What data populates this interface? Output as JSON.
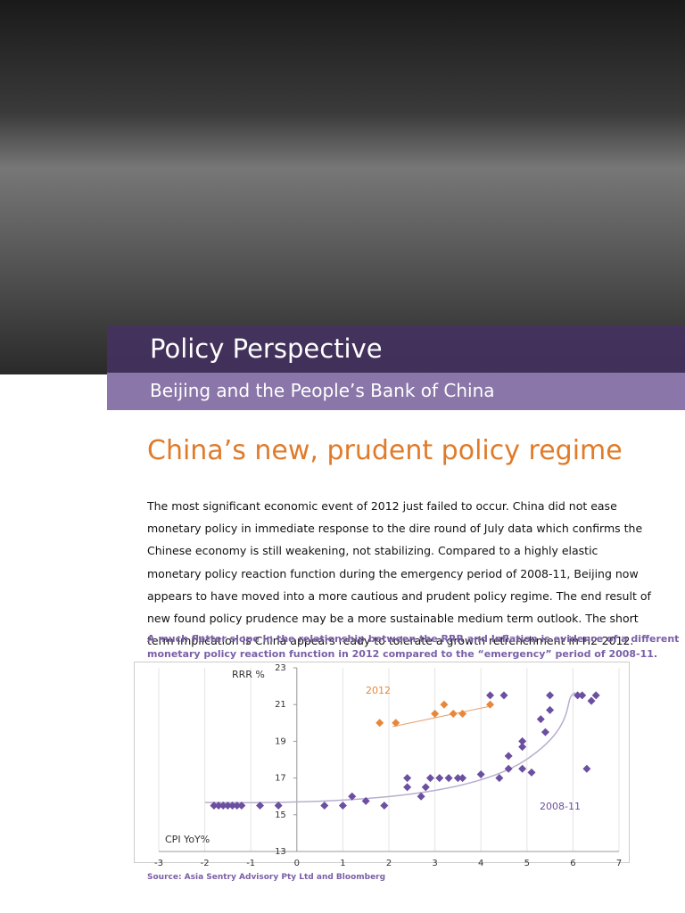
{
  "header": {
    "title": "Policy Perspective",
    "subtitle": "Beijing and the People’s Bank of China"
  },
  "headline": "China’s new, prudent policy regime",
  "body_lines": [
    "The most significant economic event of 2012 just failed to occur.  China did not ease",
    "monetary policy in immediate response to the dire round of July data which confirms the",
    "Chinese economy is still weakening, not stabilizing.  Compared to a highly elastic",
    "monetary policy reaction function during the emergency period of 2008-11, Beijing now",
    "appears to have moved into a more cautious and prudent policy regime.  The end result of",
    "new found policy prudence may be a more sustainable medium term outlook.  The short",
    "term implication is China appears ready to tolerate a growth retrenchment in H2-2012."
  ],
  "caption_lines": [
    "A much flatter slope in the relationship between the RRR and Inflation is evidence of a different",
    "monetary policy reaction function in 2012 compared to the “emergency” period of 2008-11."
  ],
  "chart_data": {
    "type": "scatter",
    "x_label": "CPI YoY%",
    "y_label": "RRR %",
    "xlim": [
      -3,
      7
    ],
    "xticks": [
      -3,
      -2,
      -1,
      0,
      1,
      2,
      3,
      4,
      5,
      6,
      7
    ],
    "ylim": [
      13,
      23
    ],
    "yticks": [
      13,
      15,
      17,
      19,
      21,
      23
    ],
    "grid": true,
    "series": [
      {
        "name": "2012",
        "color": "#e8873a",
        "x": [
          1.8,
          2.15,
          3.0,
          3.2,
          3.4,
          3.6,
          4.2
        ],
        "values": [
          20,
          20,
          20.5,
          21,
          20.5,
          20.5,
          21
        ]
      },
      {
        "name": "2008-11",
        "color": "#6b4fa0",
        "x": [
          -1.8,
          -1.7,
          -1.6,
          -1.5,
          -1.4,
          -1.3,
          -1.2,
          -0.8,
          -0.4,
          0.6,
          1.0,
          1.2,
          1.5,
          1.9,
          2.4,
          2.4,
          2.7,
          2.8,
          2.9,
          3.1,
          3.3,
          3.5,
          3.6,
          4.0,
          4.4,
          4.6,
          4.6,
          4.9,
          4.9,
          4.9,
          5.1,
          5.3,
          5.4,
          5.5,
          5.5,
          4.2,
          4.5,
          6.1,
          6.2,
          6.4,
          6.5,
          6.3
        ],
        "values": [
          15.5,
          15.5,
          15.5,
          15.5,
          15.5,
          15.5,
          15.5,
          15.5,
          15.5,
          15.5,
          15.5,
          16,
          15.75,
          15.5,
          17,
          16.5,
          16,
          16.5,
          17,
          17,
          17,
          17,
          17,
          17.2,
          17,
          18.2,
          17.5,
          17.5,
          18.7,
          19,
          17.3,
          20.2,
          19.5,
          20.7,
          21.5,
          21.5,
          21.5,
          21.5,
          21.5,
          21.2,
          21.5,
          17.5
        ]
      }
    ]
  },
  "source": "Source:  Asia Sentry Advisory Pty Ltd and Bloomberg"
}
